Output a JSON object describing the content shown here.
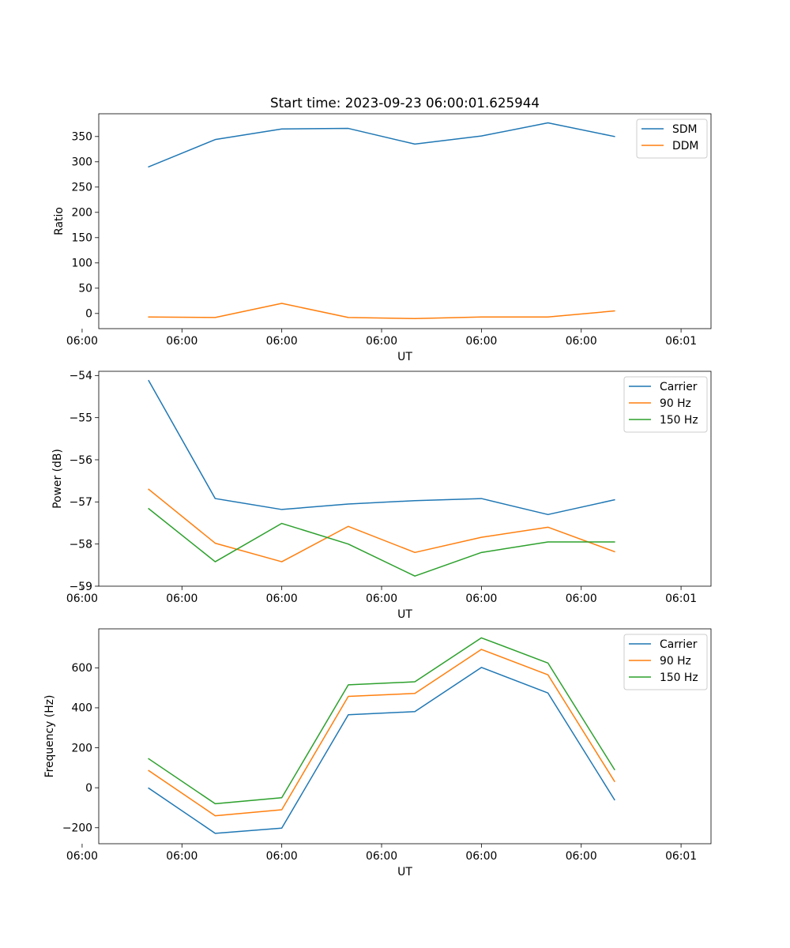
{
  "chart_data": [
    {
      "type": "line",
      "title": "Start time: 2023-09-23 06:00:01.625944",
      "xlabel": "UT",
      "ylabel": "Ratio",
      "x": [
        1,
        2,
        3,
        4,
        5,
        6,
        7,
        8
      ],
      "xlim": [
        0.25,
        9.45
      ],
      "x_ticks": [
        {
          "value": 0.0,
          "label": "06:00"
        },
        {
          "value": 1.5,
          "label": "06:00"
        },
        {
          "value": 3.0,
          "label": "06:00"
        },
        {
          "value": 4.5,
          "label": "06:00"
        },
        {
          "value": 6.0,
          "label": "06:00"
        },
        {
          "value": 7.5,
          "label": "06:00"
        },
        {
          "value": 9.0,
          "label": "06:01"
        }
      ],
      "ylim": [
        -30,
        395
      ],
      "y_ticks": [
        0,
        50,
        100,
        150,
        200,
        250,
        300,
        350
      ],
      "legend": "top-right",
      "grid": false,
      "series": [
        {
          "name": "SDM",
          "color": "#1f77b4",
          "values": [
            290,
            344,
            365,
            366,
            335,
            351,
            377,
            350
          ]
        },
        {
          "name": "DDM",
          "color": "#ff7f0e",
          "values": [
            -7,
            -8,
            20,
            -8,
            -10,
            -7,
            -7,
            5
          ]
        }
      ]
    },
    {
      "type": "line",
      "title": "",
      "xlabel": "UT",
      "ylabel": "Power (dB)",
      "x": [
        1,
        2,
        3,
        4,
        5,
        6,
        7,
        8
      ],
      "xlim": [
        0.25,
        9.45
      ],
      "x_ticks": [
        {
          "value": 0.0,
          "label": "06:00"
        },
        {
          "value": 1.5,
          "label": "06:00"
        },
        {
          "value": 3.0,
          "label": "06:00"
        },
        {
          "value": 4.5,
          "label": "06:00"
        },
        {
          "value": 6.0,
          "label": "06:00"
        },
        {
          "value": 7.5,
          "label": "06:00"
        },
        {
          "value": 9.0,
          "label": "06:01"
        }
      ],
      "ylim": [
        -59,
        -53.9
      ],
      "y_ticks": [
        -59,
        -58,
        -57,
        -56,
        -55,
        -54
      ],
      "y_tick_labels": [
        "−59",
        "−58",
        "−57",
        "−56",
        "−55",
        "−54"
      ],
      "legend": "top-right",
      "grid": false,
      "series": [
        {
          "name": "Carrier",
          "color": "#1f77b4",
          "values": [
            -54.12,
            -56.92,
            -57.18,
            -57.05,
            -56.97,
            -56.92,
            -57.3,
            -56.95
          ]
        },
        {
          "name": "90 Hz",
          "color": "#ff7f0e",
          "values": [
            -56.7,
            -57.98,
            -58.42,
            -57.58,
            -58.2,
            -57.84,
            -57.6,
            -58.18
          ]
        },
        {
          "name": "150 Hz",
          "color": "#2ca02c",
          "values": [
            -57.16,
            -58.42,
            -57.51,
            -58.0,
            -58.76,
            -58.2,
            -57.95,
            -57.95
          ]
        }
      ]
    },
    {
      "type": "line",
      "title": "",
      "xlabel": "UT",
      "ylabel": "Frequency (Hz)",
      "x": [
        1,
        2,
        3,
        4,
        5,
        6,
        7,
        8
      ],
      "xlim": [
        0.25,
        9.45
      ],
      "x_ticks": [
        {
          "value": 0.0,
          "label": "06:00"
        },
        {
          "value": 1.5,
          "label": "06:00"
        },
        {
          "value": 3.0,
          "label": "06:00"
        },
        {
          "value": 4.5,
          "label": "06:00"
        },
        {
          "value": 6.0,
          "label": "06:00"
        },
        {
          "value": 7.5,
          "label": "06:00"
        },
        {
          "value": 9.0,
          "label": "06:01"
        }
      ],
      "ylim": [
        -280,
        795
      ],
      "y_ticks": [
        -200,
        0,
        200,
        400,
        600
      ],
      "y_tick_labels": [
        "−200",
        "0",
        "200",
        "400",
        "600"
      ],
      "legend": "top-right",
      "grid": false,
      "series": [
        {
          "name": "Carrier",
          "color": "#1f77b4",
          "values": [
            -2,
            -228,
            -202,
            365,
            381,
            602,
            474,
            -60
          ]
        },
        {
          "name": "90 Hz",
          "color": "#ff7f0e",
          "values": [
            86,
            -140,
            -110,
            457,
            472,
            692,
            565,
            32
          ]
        },
        {
          "name": "150 Hz",
          "color": "#2ca02c",
          "values": [
            145,
            -80,
            -50,
            515,
            530,
            750,
            624,
            91
          ]
        }
      ]
    }
  ]
}
